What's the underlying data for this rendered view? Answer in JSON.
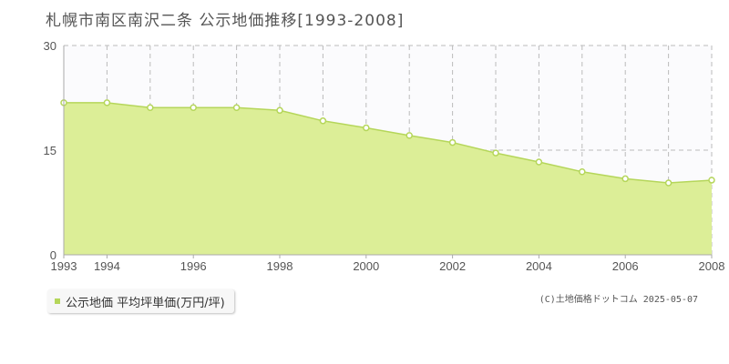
{
  "title": "札幌市南区南沢二条 公示地価推移[1993-2008]",
  "legend_label": "公示地価 平均坪単価(万円/坪)",
  "credit": "(C)土地価格ドットコム 2025-05-07",
  "colors": {
    "fill": "#dcee97",
    "line": "#b5d65a",
    "marker_fill": "#ffffff",
    "grid": "#bbbbbb",
    "axis": "#aaaaaa",
    "text": "#555555",
    "legend_marker": "#b5d65a"
  },
  "chart_data": {
    "type": "area",
    "x": [
      1993,
      1994,
      1995,
      1996,
      1997,
      1998,
      1999,
      2000,
      2001,
      2002,
      2003,
      2004,
      2005,
      2006,
      2007,
      2008
    ],
    "series": [
      {
        "name": "公示地価 平均坪単価(万円/坪)",
        "values": [
          21.8,
          21.8,
          21.1,
          21.1,
          21.1,
          20.7,
          19.2,
          18.2,
          17.1,
          16.1,
          14.6,
          13.3,
          11.9,
          10.9,
          10.3,
          10.7
        ]
      }
    ],
    "x_tick_labels": [
      "1993",
      "1994",
      "1996",
      "1998",
      "2000",
      "2002",
      "2004",
      "2006",
      "2008"
    ],
    "y_tick_labels": [
      "0",
      "15",
      "30"
    ],
    "y_ticks": [
      0,
      15,
      30
    ],
    "xlim": [
      1993,
      2008
    ],
    "ylim": [
      0,
      30
    ],
    "grid": true,
    "legend_position": "bottom-left"
  }
}
